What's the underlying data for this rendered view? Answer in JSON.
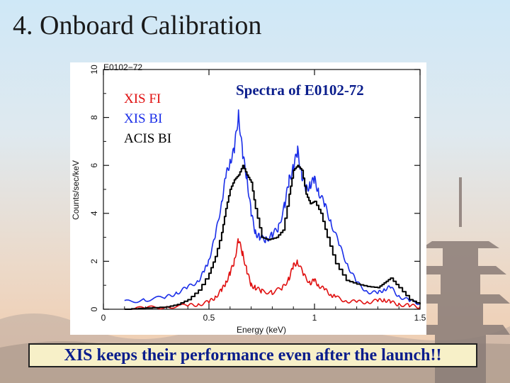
{
  "slide": {
    "title": "4. Onboard Calibration",
    "caption": "XIS keeps their performance even after the launch!!"
  },
  "colors": {
    "xis_fi": "#e01010",
    "xis_bi": "#1a2ee8",
    "acis_bi": "#000000",
    "title_blue": "#0a1d8c"
  },
  "chart_data": {
    "type": "line",
    "title": "Spectra of E0102-72",
    "source_label": "E0102−72",
    "xlabel": "Energy (keV)",
    "ylabel": "Counts/sec/keV",
    "xlim": [
      0,
      1.5
    ],
    "ylim": [
      0,
      10
    ],
    "x_ticks": [
      0,
      0.5,
      1,
      1.5
    ],
    "x_tick_labels": [
      "0",
      "0.5",
      "1",
      "1.5"
    ],
    "y_ticks": [
      0,
      2,
      4,
      6,
      8,
      10
    ],
    "y_tick_labels": [
      "0",
      "2",
      "4",
      "6",
      "8",
      "10"
    ],
    "legend_position": "top-left",
    "series": [
      {
        "name": "XIS FI",
        "color": "#e01010",
        "x": [
          0.1,
          0.2,
          0.3,
          0.4,
          0.45,
          0.5,
          0.53,
          0.56,
          0.58,
          0.6,
          0.62,
          0.64,
          0.66,
          0.68,
          0.7,
          0.72,
          0.75,
          0.8,
          0.85,
          0.88,
          0.9,
          0.92,
          0.95,
          0.98,
          1.0,
          1.02,
          1.05,
          1.08,
          1.1,
          1.15,
          1.2,
          1.25,
          1.3,
          1.33,
          1.36,
          1.4,
          1.45,
          1.5
        ],
        "y": [
          0.0,
          0.05,
          0.1,
          0.15,
          0.2,
          0.3,
          0.5,
          0.8,
          1.1,
          1.5,
          2.0,
          2.9,
          2.3,
          1.6,
          1.0,
          0.9,
          0.75,
          0.7,
          0.9,
          1.3,
          1.8,
          2.0,
          1.4,
          1.1,
          1.2,
          1.0,
          0.8,
          0.6,
          0.5,
          0.35,
          0.3,
          0.3,
          0.35,
          0.4,
          0.3,
          0.2,
          0.15,
          0.1
        ]
      },
      {
        "name": "XIS BI",
        "color": "#1a2ee8",
        "x": [
          0.1,
          0.2,
          0.3,
          0.35,
          0.4,
          0.45,
          0.48,
          0.5,
          0.53,
          0.56,
          0.58,
          0.6,
          0.62,
          0.64,
          0.66,
          0.68,
          0.7,
          0.72,
          0.74,
          0.77,
          0.8,
          0.83,
          0.86,
          0.88,
          0.9,
          0.92,
          0.94,
          0.96,
          0.98,
          1.0,
          1.02,
          1.05,
          1.08,
          1.12,
          1.16,
          1.2,
          1.25,
          1.3,
          1.33,
          1.36,
          1.4,
          1.45,
          1.5
        ],
        "y": [
          0.3,
          0.4,
          0.5,
          0.7,
          0.9,
          1.2,
          1.6,
          2.1,
          3.0,
          4.5,
          5.5,
          6.2,
          6.6,
          8.2,
          6.4,
          5.5,
          4.0,
          3.2,
          3.0,
          2.9,
          3.1,
          3.4,
          4.4,
          5.4,
          5.9,
          6.6,
          5.6,
          5.0,
          5.2,
          5.4,
          4.9,
          4.3,
          3.6,
          2.6,
          1.8,
          1.1,
          0.75,
          0.65,
          0.85,
          0.9,
          0.55,
          0.35,
          0.25
        ]
      },
      {
        "name": "ACIS BI",
        "color": "#000000",
        "x": [
          0.1,
          0.2,
          0.3,
          0.35,
          0.4,
          0.45,
          0.5,
          0.53,
          0.56,
          0.58,
          0.6,
          0.62,
          0.64,
          0.66,
          0.68,
          0.7,
          0.72,
          0.75,
          0.78,
          0.82,
          0.85,
          0.88,
          0.9,
          0.92,
          0.94,
          0.96,
          0.98,
          1.0,
          1.03,
          1.06,
          1.1,
          1.15,
          1.2,
          1.25,
          1.3,
          1.33,
          1.36,
          1.4,
          1.45,
          1.5
        ],
        "y": [
          0.0,
          0.05,
          0.1,
          0.2,
          0.4,
          0.8,
          1.5,
          2.2,
          3.2,
          4.2,
          5.0,
          5.4,
          5.6,
          6.0,
          5.6,
          5.3,
          4.2,
          3.0,
          2.9,
          3.0,
          3.3,
          4.8,
          5.8,
          6.0,
          5.8,
          4.8,
          4.4,
          4.5,
          4.0,
          3.0,
          1.9,
          1.2,
          1.05,
          0.95,
          0.9,
          1.1,
          1.3,
          0.9,
          0.4,
          0.2
        ]
      }
    ]
  }
}
